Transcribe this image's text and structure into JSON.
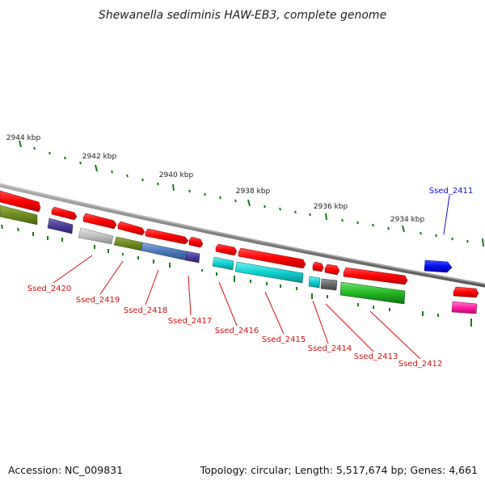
{
  "title": "Shewanella sediminis HAW-EB3, complete genome",
  "ticks": [
    {
      "label": "2944 kbp"
    },
    {
      "label": "2942 kbp"
    },
    {
      "label": "2940 kbp"
    },
    {
      "label": "2938 kbp"
    },
    {
      "label": "2936 kbp"
    },
    {
      "label": "2934 kbp"
    }
  ],
  "genes": [
    {
      "name": "Ssed_2420",
      "color": "#d11010"
    },
    {
      "name": "Ssed_2419",
      "color": "#d11010"
    },
    {
      "name": "Ssed_2418",
      "color": "#d11010"
    },
    {
      "name": "Ssed_2417",
      "color": "#d11010"
    },
    {
      "name": "Ssed_2416",
      "color": "#d11010"
    },
    {
      "name": "Ssed_2415",
      "color": "#d11010"
    },
    {
      "name": "Ssed_2414",
      "color": "#d11010"
    },
    {
      "name": "Ssed_2413",
      "color": "#d11010"
    },
    {
      "name": "Ssed_2412",
      "color": "#d11010"
    },
    {
      "name": "Ssed_2411",
      "color": "#1010cc"
    }
  ],
  "footer": {
    "accession": "Accession: NC_009831",
    "topology": "Topology: circular; Length: 5,517,674 bp; Genes: 4,661"
  }
}
